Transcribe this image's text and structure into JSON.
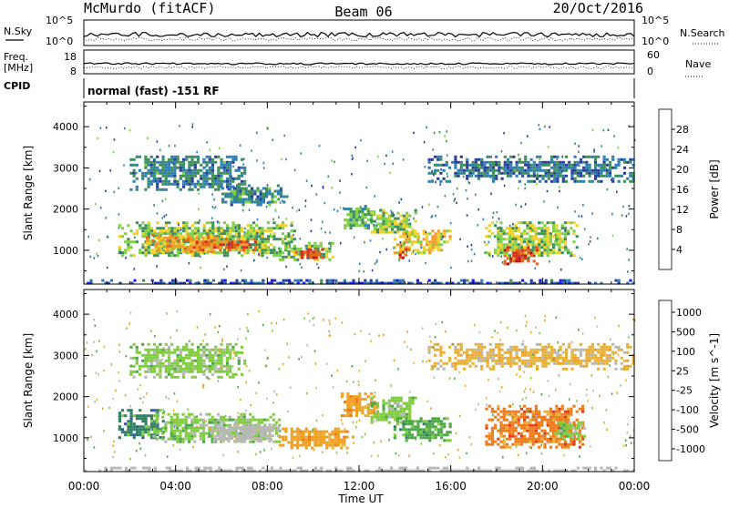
{
  "header": {
    "station": "McMurdo (fitACF)",
    "beam": "Beam 06",
    "date": "20/Oct/2016"
  },
  "panels": {
    "nsky_label": "N.Sky",
    "nsearch_label": "N.Search",
    "nsky_ticks": [
      "10^5",
      "10^0"
    ],
    "nsearch_ticks": [
      "10^5",
      "10^0"
    ],
    "freq_label_1": "Freq.",
    "freq_label_2": "[MHz]",
    "freq_ticks": [
      "18",
      "8"
    ],
    "nave_label": "Nave",
    "nave_ticks": [
      "60",
      "0"
    ],
    "cpid_label": "CPID",
    "cpid_text": "normal (fast) -151 RF"
  },
  "colors": {
    "power": [
      "#1a1af5",
      "#28409c",
      "#2f7fb3",
      "#3f8f5a",
      "#7fd046",
      "#f0d02a",
      "#f39a2c",
      "#e8651c",
      "#d8301e",
      "#bf1010"
    ],
    "velocity": [
      "#2222cc",
      "#2a5aa8",
      "#2f7f64",
      "#4da74a",
      "#7fcc40",
      "#b8b8b8",
      "#e8b23a",
      "#f0a020",
      "#ef7a1a",
      "#e03c1a",
      "#d01010"
    ]
  },
  "chart_data": [
    {
      "type": "heatmap",
      "title": "Power",
      "xlabel": "Time UT",
      "ylabel": "Slant Range [km]",
      "xlim": [
        "00:00",
        "24:00"
      ],
      "ylim": [
        180,
        4600
      ],
      "x_ticks": [
        "00:00",
        "04:00",
        "08:00",
        "12:00",
        "16:00",
        "20:00",
        "00:00"
      ],
      "y_ticks": [
        1000,
        2000,
        3000,
        4000
      ],
      "colorbar": {
        "label": "Power [dB]",
        "range": [
          0,
          32
        ],
        "ticks": [
          4,
          8,
          12,
          16,
          20,
          24,
          28
        ]
      },
      "regions": [
        {
          "t": [
            1.5,
            9.2
          ],
          "r": [
            850,
            1700
          ],
          "value": 14
        },
        {
          "t": [
            2.7,
            5.8
          ],
          "r": [
            950,
            1400
          ],
          "value": 20
        },
        {
          "t": [
            4.5,
            7.5
          ],
          "r": [
            1000,
            1300
          ],
          "value": 24
        },
        {
          "t": [
            8.5,
            10.8
          ],
          "r": [
            780,
            1200
          ],
          "value": 14
        },
        {
          "t": [
            9.2,
            10.4
          ],
          "r": [
            800,
            1050
          ],
          "value": 26
        },
        {
          "t": [
            11.2,
            12.7
          ],
          "r": [
            1550,
            2100
          ],
          "value": 12
        },
        {
          "t": [
            12.5,
            14.5
          ],
          "r": [
            1350,
            2000
          ],
          "value": 14
        },
        {
          "t": [
            13.5,
            16.0
          ],
          "r": [
            950,
            1500
          ],
          "value": 18
        },
        {
          "t": [
            13.6,
            14.2
          ],
          "r": [
            850,
            1050
          ],
          "value": 26
        },
        {
          "t": [
            17.5,
            21.5
          ],
          "r": [
            850,
            1700
          ],
          "value": 15
        },
        {
          "t": [
            18.3,
            19.7
          ],
          "r": [
            700,
            1100
          ],
          "value": 26
        },
        {
          "t": [
            2.0,
            7.0
          ],
          "r": [
            2500,
            3300
          ],
          "value": 9
        },
        {
          "t": [
            15.0,
            24.0
          ],
          "r": [
            2700,
            3300
          ],
          "value": 8
        },
        {
          "t": [
            6.0,
            8.8
          ],
          "r": [
            2100,
            2600
          ],
          "value": 10
        },
        {
          "t": [
            0.0,
            24.0
          ],
          "r": [
            180,
            300
          ],
          "value": 6
        }
      ]
    },
    {
      "type": "heatmap",
      "title": "Velocity",
      "xlabel": "Time UT",
      "ylabel": "Slant Range [km]",
      "xlim": [
        "00:00",
        "24:00"
      ],
      "ylim": [
        180,
        4600
      ],
      "x_ticks": [
        "00:00",
        "04:00",
        "08:00",
        "12:00",
        "16:00",
        "20:00",
        "00:00"
      ],
      "y_ticks": [
        1000,
        2000,
        3000,
        4000
      ],
      "colorbar": {
        "label": "Velocity [m s^-1]",
        "ticks": [
          1000,
          500,
          100,
          25,
          -25,
          -100,
          -500,
          -1000
        ]
      },
      "regions": [
        {
          "t": [
            1.5,
            3.5
          ],
          "r": [
            1000,
            1700
          ],
          "value": 300
        },
        {
          "t": [
            3.0,
            8.5
          ],
          "r": [
            900,
            1600
          ],
          "value": 80
        },
        {
          "t": [
            5.5,
            8.5
          ],
          "r": [
            950,
            1350
          ],
          "value": 10
        },
        {
          "t": [
            8.5,
            11.8
          ],
          "r": [
            750,
            1250
          ],
          "value": -200
        },
        {
          "t": [
            11.2,
            12.8
          ],
          "r": [
            1550,
            2100
          ],
          "value": -150
        },
        {
          "t": [
            12.5,
            14.5
          ],
          "r": [
            1400,
            2000
          ],
          "value": 80
        },
        {
          "t": [
            13.5,
            16.0
          ],
          "r": [
            950,
            1500
          ],
          "value": 200
        },
        {
          "t": [
            17.5,
            21.8
          ],
          "r": [
            800,
            1800
          ],
          "value": -300
        },
        {
          "t": [
            20.5,
            21.8
          ],
          "r": [
            1000,
            1400
          ],
          "value": 80
        },
        {
          "t": [
            2.0,
            7.0
          ],
          "r": [
            2500,
            3300
          ],
          "value": 60
        },
        {
          "t": [
            15.0,
            24.0
          ],
          "r": [
            2700,
            3300
          ],
          "value": -60
        },
        {
          "t": [
            0.0,
            24.0
          ],
          "r": [
            180,
            300
          ],
          "value": 0
        }
      ]
    }
  ]
}
